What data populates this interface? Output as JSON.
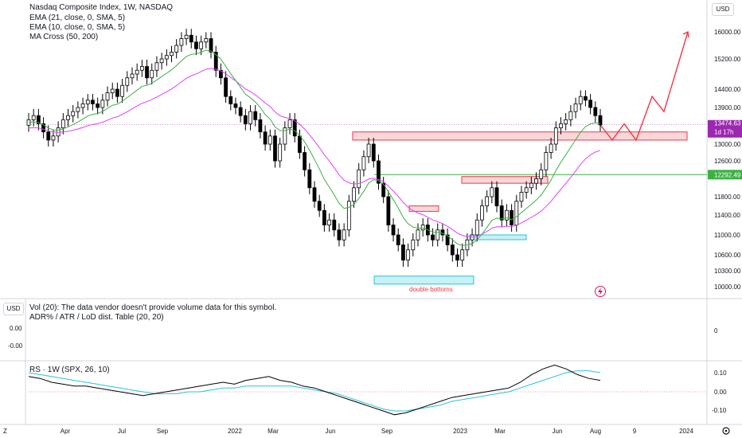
{
  "header": {
    "title": "Nasdaq Composite Index, 1W, NASDAQ",
    "indicators": [
      "EMA (21, close, 0, SMA, 5)",
      "EMA (10, close, 0, SMA, 5)",
      "MA Cross (50, 200)"
    ],
    "currency_button": "USD"
  },
  "volume_pane": {
    "line1": "Vol (20): The data vendor doesn't provide volume data for this symbol.",
    "line2": "ADR% / ATR / LoD dist. Table (20, 20)",
    "left_button": "USD",
    "left_ticks": [
      "0.00",
      "-0.00"
    ],
    "right_tick": "0"
  },
  "rs_pane": {
    "label": "RS · 1W (SPX, 26, 10)",
    "right_ticks": [
      "0.10",
      "0.00",
      "-0.10"
    ]
  },
  "bottom_bar": {
    "left": "Z",
    "right_icon": "gear-icon"
  },
  "annotation": "double bottoms",
  "price_tags": {
    "last_price": "13474.63",
    "countdown": "1d 17h",
    "line_price": "12292.49"
  },
  "colors": {
    "up": "#000000",
    "down": "#000000",
    "ema21": "#e040fb",
    "ema10": "#3cb043",
    "projection": "#f23645",
    "resistance_fill": "#f8d7da",
    "support_fill": "#c8f0f7",
    "rs_line": "#000000",
    "rs_ma": "#26c6da"
  },
  "chart_data": {
    "type": "candlestick",
    "title": "Nasdaq Composite Index, 1W, NASDAQ",
    "y_ticks": [
      16000,
      15200,
      14400,
      13900,
      13000,
      12600,
      11800,
      11400,
      11000,
      10600,
      10300,
      10000
    ],
    "y_ticks_labels": [
      "16000.00",
      "15200.00",
      "14400.00",
      "13900.00",
      "13000.00",
      "12600.00",
      "11800.00",
      "11400.00",
      "11000.00",
      "10600.00",
      "10300.00",
      "10000.00"
    ],
    "x_ticks": [
      "Apr",
      "Jul",
      "Sep",
      "2022",
      "Mar",
      "Jun",
      "Sep",
      "2023",
      "Mar",
      "Jun",
      "Aug",
      "9",
      "2024"
    ],
    "last_price": 13474.63,
    "horizontal_line": 12292.49,
    "closes": [
      13600,
      13700,
      13500,
      13300,
      13100,
      13200,
      13400,
      13600,
      13700,
      13800,
      13900,
      14000,
      14100,
      14000,
      13900,
      14100,
      14300,
      14400,
      14200,
      14500,
      14700,
      14800,
      14900,
      15000,
      14700,
      14900,
      15100,
      15200,
      15300,
      15400,
      15600,
      15800,
      15900,
      15700,
      15500,
      15700,
      15800,
      15400,
      14900,
      14700,
      14200,
      14000,
      13900,
      13700,
      13500,
      13800,
      13600,
      13300,
      13000,
      13200,
      12600,
      13000,
      13400,
      13600,
      13200,
      12800,
      12400,
      12000,
      11700,
      11500,
      11200,
      11300,
      11100,
      10900,
      11100,
      11700,
      12000,
      12400,
      12700,
      13000,
      12600,
      12100,
      11800,
      11200,
      11000,
      10800,
      10500,
      10700,
      10900,
      11100,
      11200,
      11000,
      10900,
      11100,
      11000,
      10800,
      10600,
      10500,
      10700,
      10900,
      11000,
      11300,
      11600,
      11800,
      12000,
      11600,
      11300,
      11500,
      11200,
      11700,
      11900,
      12000,
      12100,
      12200,
      12400,
      12800,
      13000,
      13400,
      13500,
      13600,
      13800,
      14000,
      14200,
      14100,
      13900,
      13700,
      13474
    ],
    "projection_points": [
      [
        13474,
        0
      ],
      [
        13100,
        3
      ],
      [
        13500,
        6
      ],
      [
        13100,
        9
      ],
      [
        14200,
        13
      ],
      [
        13800,
        16
      ],
      [
        16000,
        22
      ]
    ],
    "resistance_zones": [
      {
        "from": 13100,
        "to": 13300
      },
      {
        "from": 11480,
        "to": 11600
      },
      {
        "from": 12100,
        "to": 12250
      }
    ],
    "support_zones": [
      {
        "from": 10050,
        "to": 10200
      },
      {
        "from": 10950,
        "to": 11000
      }
    ],
    "rs_values": [
      0.08,
      0.07,
      0.05,
      0.04,
      0.03,
      0.03,
      0.02,
      0.01,
      0.0,
      -0.01,
      -0.02,
      -0.01,
      0.0,
      0.01,
      0.02,
      0.03,
      0.04,
      0.05,
      0.04,
      0.06,
      0.07,
      0.08,
      0.06,
      0.05,
      0.03,
      0.02,
      0.0,
      -0.02,
      -0.04,
      -0.06,
      -0.08,
      -0.1,
      -0.12,
      -0.11,
      -0.09,
      -0.07,
      -0.05,
      -0.03,
      -0.02,
      -0.01,
      0.0,
      0.01,
      0.02,
      0.05,
      0.09,
      0.12,
      0.14,
      0.12,
      0.09,
      0.07,
      0.06
    ],
    "rs_ma_values": [
      0.1,
      0.09,
      0.08,
      0.07,
      0.06,
      0.05,
      0.04,
      0.03,
      0.02,
      0.01,
      0.0,
      -0.01,
      -0.01,
      -0.01,
      0.0,
      0.0,
      0.01,
      0.02,
      0.02,
      0.03,
      0.03,
      0.03,
      0.03,
      0.03,
      0.02,
      0.01,
      0.0,
      -0.01,
      -0.03,
      -0.05,
      -0.07,
      -0.09,
      -0.1,
      -0.1,
      -0.09,
      -0.08,
      -0.07,
      -0.05,
      -0.04,
      -0.03,
      -0.02,
      -0.01,
      0.0,
      0.02,
      0.04,
      0.06,
      0.08,
      0.1,
      0.11,
      0.11,
      0.1
    ]
  }
}
